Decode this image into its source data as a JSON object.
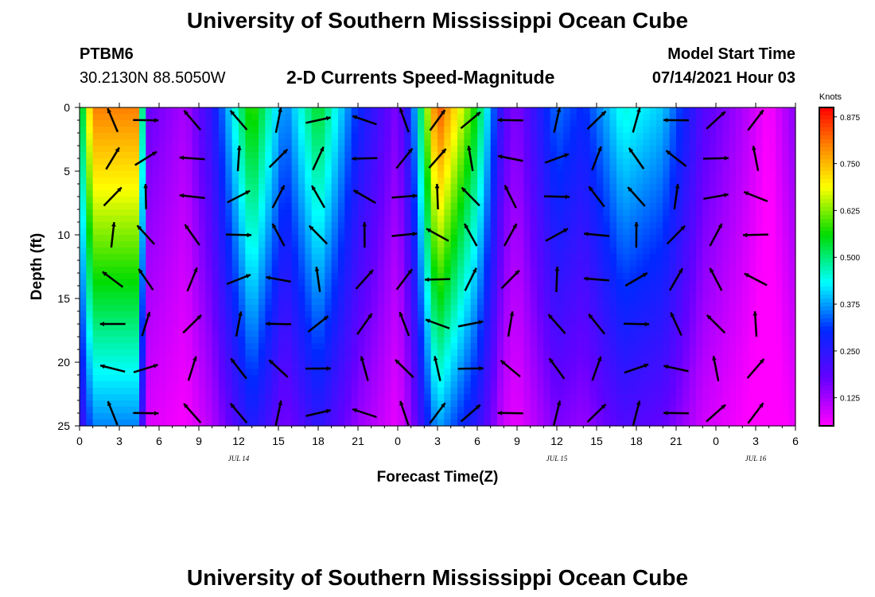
{
  "header": {
    "title": "University of Southern Mississippi Ocean Cube",
    "station_id": "PTBM6",
    "coords": "30.2130N  88.5050W",
    "subtitle": "2-D Currents Speed-Magnitude",
    "model_label": "Model Start Time",
    "model_time": "07/14/2021 Hour 03"
  },
  "footer": {
    "title": "University of Southern Mississippi Ocean Cube"
  },
  "chart_data": {
    "type": "heatmap",
    "xlabel": "Forecast Time(Z)",
    "ylabel": "Depth (ft)",
    "x_ticks": [
      "0",
      "3",
      "6",
      "9",
      "12",
      "15",
      "18",
      "21",
      "0",
      "3",
      "6",
      "9",
      "12",
      "15",
      "18",
      "21",
      "0",
      "3",
      "6"
    ],
    "x_range_hours": [
      0,
      54
    ],
    "date_labels": [
      {
        "hour": 12,
        "text": "JUL 14"
      },
      {
        "hour": 36,
        "text": "JUL 15"
      },
      {
        "hour": 51,
        "text": "JUL 16"
      }
    ],
    "y_ticks": [
      0,
      5,
      10,
      15,
      20,
      25
    ],
    "ylim": [
      0,
      25
    ],
    "y_inverted": true,
    "colorbar": {
      "unit": "Knots",
      "ticks": [
        "0.875",
        "0.750",
        "0.625",
        "0.500",
        "0.375",
        "0.250",
        "0.125"
      ],
      "range": [
        0.05,
        0.9
      ]
    },
    "speed_profile_hours": [
      0,
      1,
      4.5,
      5,
      8,
      10,
      13,
      15.5,
      18,
      21,
      24,
      25,
      27,
      30,
      32,
      33,
      36,
      38,
      41,
      44,
      47,
      50,
      52,
      54
    ],
    "speed_profile_values": [
      0.45,
      0.8,
      0.8,
      0.18,
      0.12,
      0.25,
      0.6,
      0.35,
      0.55,
      0.3,
      0.15,
      0.3,
      0.85,
      0.55,
      0.2,
      0.15,
      0.35,
      0.3,
      0.45,
      0.4,
      0.2,
      0.12,
      0.05,
      0.15
    ],
    "arrow_hours": [
      2.5,
      5,
      8.5,
      12,
      15,
      18,
      21.5,
      24.5,
      27,
      29.5,
      32.5,
      36,
      39,
      42,
      45,
      48,
      51
    ],
    "arrow_depths_ft": [
      1,
      4,
      7,
      10,
      13.5,
      17,
      20.5,
      24
    ]
  }
}
